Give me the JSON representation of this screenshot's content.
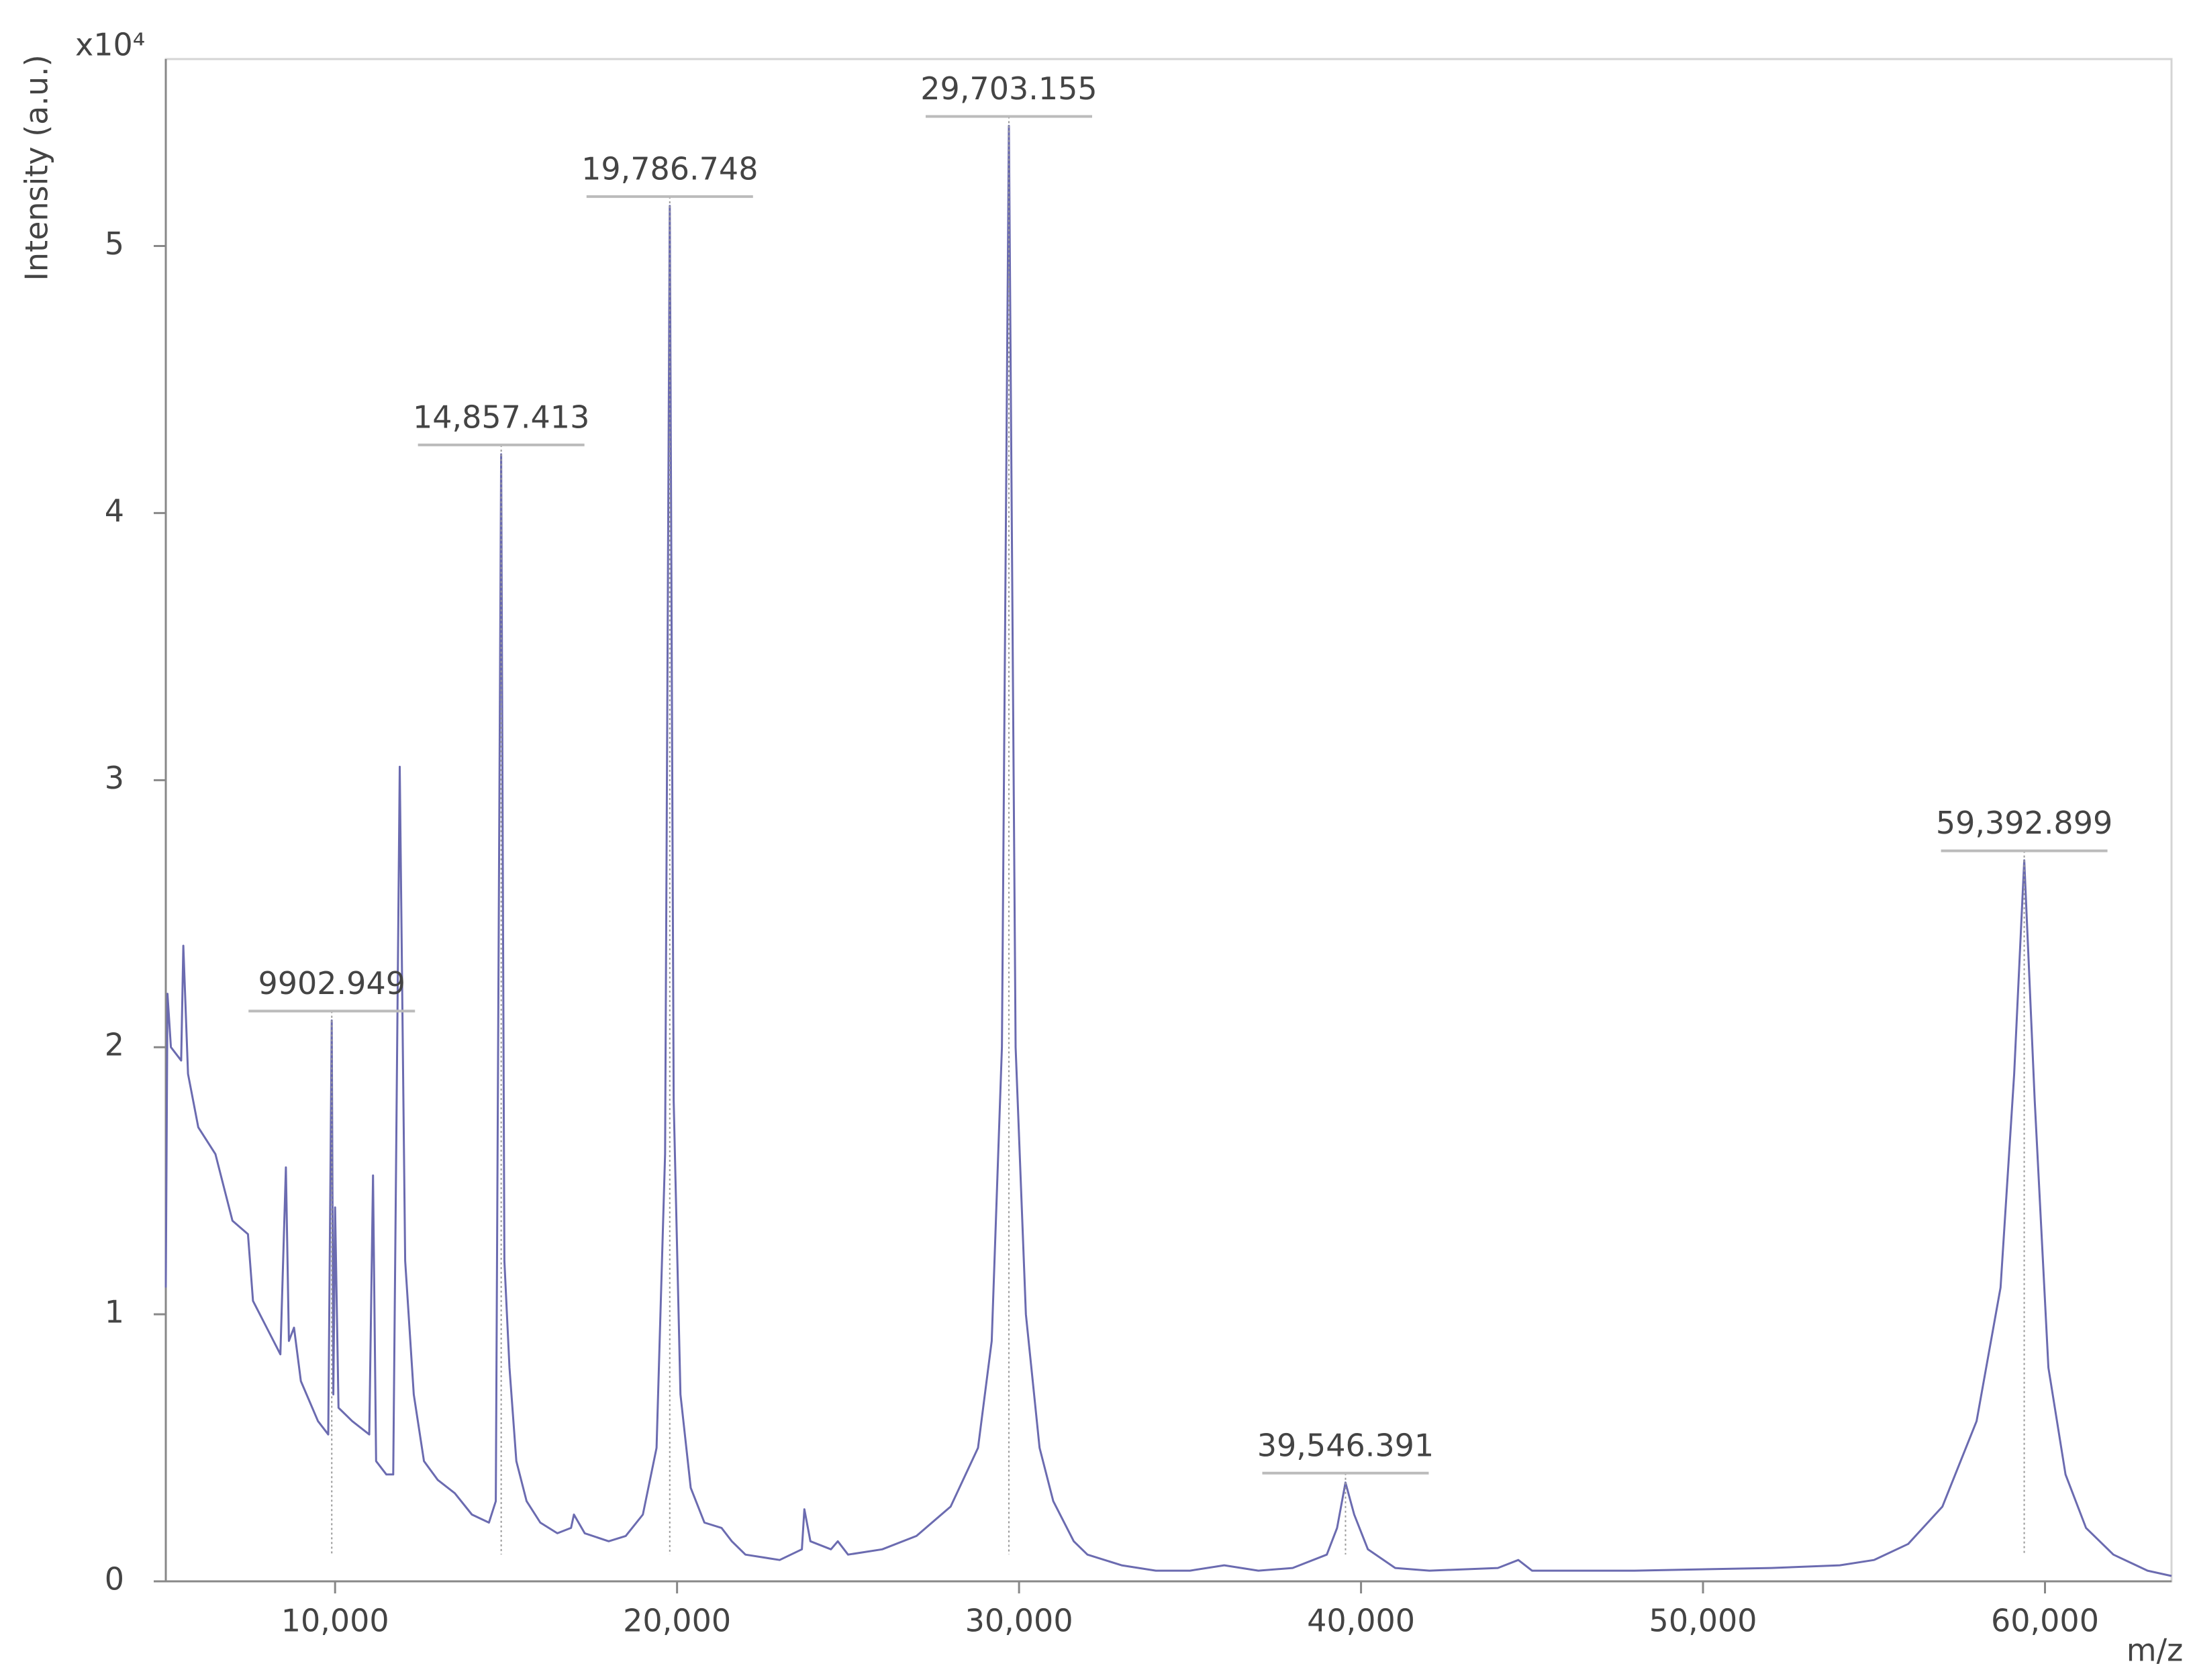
{
  "chart_data": {
    "type": "line",
    "y_multiplier": "x10⁴",
    "ylabel": "Intensity (a.u.)",
    "xlabel": "m/z",
    "xlim": [
      5050,
      63700
    ],
    "ylim": [
      0,
      5.7
    ],
    "xticks": [
      {
        "value": 10000,
        "label": "10,000"
      },
      {
        "value": 20000,
        "label": "20,000"
      },
      {
        "value": 30000,
        "label": "30,000"
      },
      {
        "value": 40000,
        "label": "40,000"
      },
      {
        "value": 50000,
        "label": "50,000"
      },
      {
        "value": 60000,
        "label": "60,000"
      }
    ],
    "yticks": [
      0,
      1,
      2,
      3,
      4,
      5
    ],
    "x": [
      5050,
      5100,
      5200,
      5500,
      5563,
      5700,
      6000,
      6500,
      7000,
      7453,
      7600,
      8000,
      8400,
      8562,
      8650,
      8800,
      9000,
      9500,
      9800,
      9903,
      9950,
      10000,
      10100,
      10500,
      11000,
      11109,
      11200,
      11500,
      11700,
      11890,
      12050,
      12300,
      12600,
      13000,
      13500,
      14000,
      14500,
      14700,
      14857,
      14950,
      15100,
      15300,
      15600,
      16000,
      16500,
      16900,
      16984,
      17300,
      18000,
      18500,
      19000,
      19400,
      19650,
      19787,
      19900,
      20100,
      20400,
      20800,
      21300,
      21600,
      22000,
      23000,
      23650,
      23722,
      23900,
      24500,
      24700,
      25000,
      26000,
      27000,
      28000,
      28800,
      29200,
      29500,
      29703,
      29900,
      30200,
      30600,
      31000,
      31600,
      32000,
      33000,
      34000,
      35000,
      36000,
      37000,
      38000,
      39000,
      39300,
      39546,
      39800,
      40200,
      41000,
      42000,
      44000,
      44600,
      45000,
      48000,
      52000,
      54000,
      55000,
      56000,
      57000,
      58000,
      58700,
      59100,
      59393,
      59700,
      60100,
      60600,
      61200,
      62000,
      63000,
      63700
    ],
    "series": [
      {
        "color": "#6b6bb0",
        "values": [
          1.1,
          2.2,
          2.0,
          1.95,
          2.38,
          1.9,
          1.7,
          1.6,
          1.35,
          1.3,
          1.05,
          0.95,
          0.85,
          1.55,
          0.9,
          0.95,
          0.75,
          0.6,
          0.55,
          2.1,
          0.7,
          1.4,
          0.65,
          0.6,
          0.55,
          1.52,
          0.45,
          0.4,
          0.4,
          3.05,
          1.2,
          0.7,
          0.45,
          0.38,
          0.33,
          0.25,
          0.22,
          0.3,
          4.22,
          1.2,
          0.8,
          0.45,
          0.3,
          0.22,
          0.18,
          0.2,
          0.25,
          0.18,
          0.15,
          0.17,
          0.25,
          0.5,
          1.6,
          5.15,
          1.8,
          0.7,
          0.35,
          0.22,
          0.2,
          0.15,
          0.1,
          0.08,
          0.12,
          0.27,
          0.15,
          0.12,
          0.15,
          0.1,
          0.12,
          0.17,
          0.28,
          0.5,
          0.9,
          2.0,
          5.45,
          2.0,
          1.0,
          0.5,
          0.3,
          0.15,
          0.1,
          0.06,
          0.04,
          0.04,
          0.06,
          0.04,
          0.05,
          0.1,
          0.2,
          0.37,
          0.25,
          0.12,
          0.05,
          0.04,
          0.05,
          0.08,
          0.04,
          0.04,
          0.05,
          0.06,
          0.08,
          0.14,
          0.28,
          0.6,
          1.1,
          1.9,
          2.7,
          1.8,
          0.8,
          0.4,
          0.2,
          0.1,
          0.04,
          0.02
        ]
      }
    ],
    "annotations": [
      {
        "x": 9902.949,
        "label": "9902.949"
      },
      {
        "x": 14857.413,
        "label": "14,857.413"
      },
      {
        "x": 19786.748,
        "label": "19,786.748"
      },
      {
        "x": 29703.155,
        "label": "29,703.155"
      },
      {
        "x": 39546.391,
        "label": "39,546.391"
      },
      {
        "x": 59392.899,
        "label": "59,392.899"
      }
    ]
  }
}
